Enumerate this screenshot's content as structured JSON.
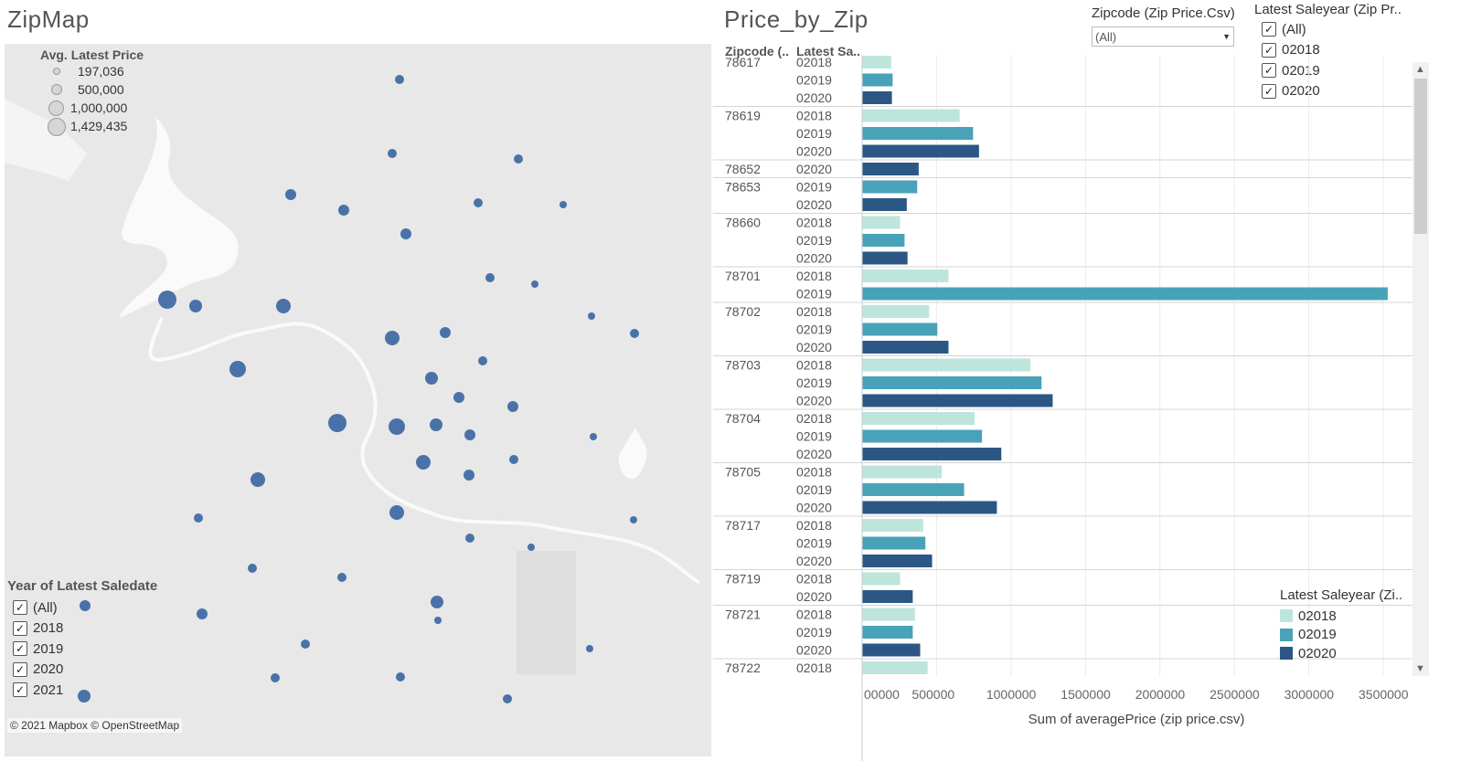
{
  "map": {
    "title": "ZipMap",
    "size_legend": {
      "title": "Avg. Latest Price",
      "items": [
        "197,036",
        "500,000",
        "1,000,000",
        "1,429,435"
      ]
    },
    "year_filter": {
      "title": "Year of Latest Saledate",
      "options": [
        {
          "label": "(All)",
          "checked": true
        },
        {
          "label": "2018",
          "checked": true
        },
        {
          "label": "2019",
          "checked": true
        },
        {
          "label": "2020",
          "checked": true
        },
        {
          "label": "2021",
          "checked": true
        }
      ]
    },
    "attribution": "© 2021 Mapbox © OpenStreetMap",
    "marker_color": "#4a72a8"
  },
  "chart": {
    "title": "Price_by_Zip",
    "col_headers": [
      "Zipcode (..",
      "Latest Sa.."
    ],
    "zip_filter": {
      "title": "Zipcode (Zip Price.Csv)",
      "value": "(All)"
    },
    "year_filter": {
      "title": "Latest Saleyear (Zip Pr..",
      "options": [
        {
          "label": "(All)",
          "checked": true
        },
        {
          "label": "02018",
          "checked": true
        },
        {
          "label": "02019",
          "checked": true
        },
        {
          "label": "02020",
          "checked": true
        }
      ]
    },
    "legend": {
      "title": "Latest Saleyear (Zi..",
      "items": [
        {
          "label": "02018",
          "color": "#bde5dc"
        },
        {
          "label": "02019",
          "color": "#48a2b8"
        },
        {
          "label": "02020",
          "color": "#2c5785"
        }
      ]
    },
    "axis_title": "Sum of averagePrice (zip price.csv)"
  },
  "chart_data": {
    "type": "bar",
    "orientation": "horizontal",
    "xlabel": "Sum of averagePrice (zip price.csv)",
    "xlim": [
      0,
      3600000
    ],
    "x_ticks": [
      "00000",
      "500000",
      "1000000",
      "1500000",
      "2000000",
      "2500000",
      "3000000",
      "3500000"
    ],
    "colors": {
      "02018": "#bde5dc",
      "02019": "#48a2b8",
      "02020": "#2c5785"
    },
    "groups": [
      {
        "zip": "78617",
        "rows": [
          {
            "year": "02018",
            "value": 195000
          },
          {
            "year": "02019",
            "value": 205000
          },
          {
            "year": "02020",
            "value": 200000
          }
        ]
      },
      {
        "zip": "78619",
        "rows": [
          {
            "year": "02018",
            "value": 655000
          },
          {
            "year": "02019",
            "value": 745000
          },
          {
            "year": "02020",
            "value": 785000
          }
        ]
      },
      {
        "zip": "78652",
        "rows": [
          {
            "year": "02020",
            "value": 380000
          }
        ]
      },
      {
        "zip": "78653",
        "rows": [
          {
            "year": "02019",
            "value": 370000
          },
          {
            "year": "02020",
            "value": 300000
          }
        ]
      },
      {
        "zip": "78660",
        "rows": [
          {
            "year": "02018",
            "value": 255000
          },
          {
            "year": "02019",
            "value": 285000
          },
          {
            "year": "02020",
            "value": 305000
          }
        ]
      },
      {
        "zip": "78701",
        "rows": [
          {
            "year": "02018",
            "value": 580000
          },
          {
            "year": "02019",
            "value": 3530000
          }
        ]
      },
      {
        "zip": "78702",
        "rows": [
          {
            "year": "02018",
            "value": 450000
          },
          {
            "year": "02019",
            "value": 505000
          },
          {
            "year": "02020",
            "value": 580000
          }
        ]
      },
      {
        "zip": "78703",
        "rows": [
          {
            "year": "02018",
            "value": 1130000
          },
          {
            "year": "02019",
            "value": 1205000
          },
          {
            "year": "02020",
            "value": 1280000
          }
        ]
      },
      {
        "zip": "78704",
        "rows": [
          {
            "year": "02018",
            "value": 755000
          },
          {
            "year": "02019",
            "value": 805000
          },
          {
            "year": "02020",
            "value": 935000
          }
        ]
      },
      {
        "zip": "78705",
        "rows": [
          {
            "year": "02018",
            "value": 535000
          },
          {
            "year": "02019",
            "value": 685000
          },
          {
            "year": "02020",
            "value": 905000
          }
        ]
      },
      {
        "zip": "78717",
        "rows": [
          {
            "year": "02018",
            "value": 410000
          },
          {
            "year": "02019",
            "value": 425000
          },
          {
            "year": "02020",
            "value": 470000
          }
        ]
      },
      {
        "zip": "78719",
        "rows": [
          {
            "year": "02018",
            "value": 255000
          },
          {
            "year": "02020",
            "value": 340000
          }
        ]
      },
      {
        "zip": "78721",
        "rows": [
          {
            "year": "02018",
            "value": 355000
          },
          {
            "year": "02019",
            "value": 340000
          },
          {
            "year": "02020",
            "value": 390000
          }
        ]
      },
      {
        "zip": "78722",
        "rows": [
          {
            "year": "02018",
            "value": 440000
          }
        ]
      }
    ]
  }
}
